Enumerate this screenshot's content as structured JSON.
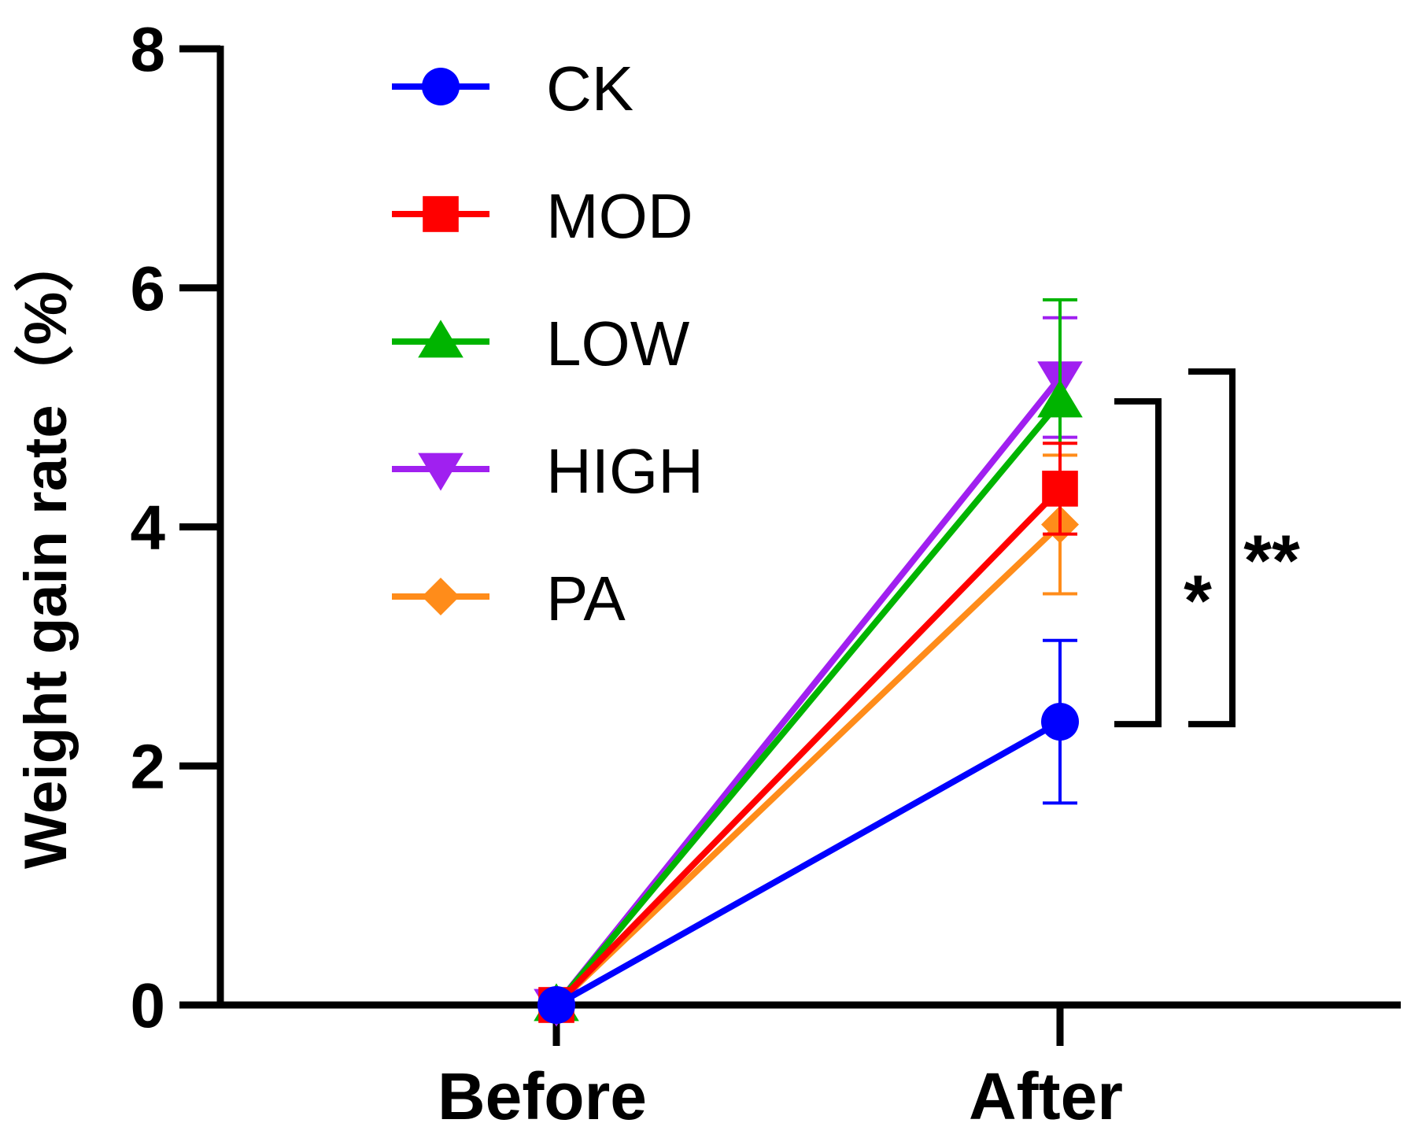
{
  "chart_data": {
    "type": "line",
    "title": "",
    "xlabel": "",
    "ylabel": "Weight gain rate（%）",
    "categories": [
      "Before",
      "After"
    ],
    "ylim": [
      0,
      8
    ],
    "yticks": [
      0,
      2,
      4,
      6,
      8
    ],
    "ytick_labels": [
      "0",
      "2",
      "4",
      "6",
      "8"
    ],
    "grid": false,
    "legend_position": "top-left",
    "series": [
      {
        "name": "CK",
        "color": "#0000ff",
        "marker": "circle",
        "values": [
          0,
          2.37
        ],
        "errors": [
          0,
          0.68
        ]
      },
      {
        "name": "MOD",
        "color": "#ff0000",
        "marker": "square",
        "values": [
          0,
          4.32
        ],
        "errors": [
          0,
          0.38
        ]
      },
      {
        "name": "LOW",
        "color": "#00b400",
        "marker": "triangle-up",
        "values": [
          0,
          5.05
        ],
        "errors": [
          0,
          0.85
        ]
      },
      {
        "name": "HIGH",
        "color": "#a020f0",
        "marker": "triangle-down",
        "values": [
          0,
          5.25
        ],
        "errors": [
          0,
          0.5
        ]
      },
      {
        "name": "PA",
        "color": "#ff8c1a",
        "marker": "diamond",
        "values": [
          0,
          4.02
        ],
        "errors": [
          0,
          0.58
        ]
      }
    ],
    "annotations": [
      {
        "label": "*",
        "from": 2.35,
        "to": 5.05
      },
      {
        "label": "**",
        "from": 2.35,
        "to": 5.3
      }
    ]
  }
}
